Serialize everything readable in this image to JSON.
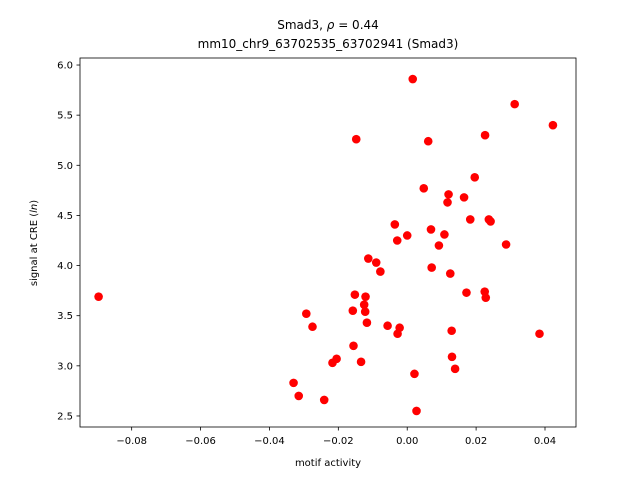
{
  "chart_data": {
    "type": "scatter",
    "title_line1_prefix": "Smad3, ",
    "title_line1_rho": "ρ",
    "title_line1_value": " = 0.44",
    "title_line2": "mm10_chr9_63702535_63702941 (Smad3)",
    "xlabel": "motif activity",
    "ylabel_prefix": "signal at CRE (",
    "ylabel_ln": "ln",
    "ylabel_suffix": ")",
    "xlim": [
      -0.095,
      0.049
    ],
    "ylim": [
      2.39,
      6.07
    ],
    "xticks": [
      -0.08,
      -0.06,
      -0.04,
      -0.02,
      0.0,
      0.02,
      0.04
    ],
    "xtick_labels": [
      "−0.08",
      "−0.06",
      "−0.04",
      "−0.02",
      "0.00",
      "0.02",
      "0.04"
    ],
    "yticks": [
      2.5,
      3.0,
      3.5,
      4.0,
      4.5,
      5.0,
      5.5,
      6.0
    ],
    "ytick_labels": [
      "2.5",
      "3.0",
      "3.5",
      "4.0",
      "4.5",
      "5.0",
      "5.5",
      "6.0"
    ],
    "grid": false,
    "marker_color": "#ff0000",
    "points": [
      [
        -0.0896,
        3.69
      ],
      [
        -0.033,
        2.83
      ],
      [
        -0.0315,
        2.7
      ],
      [
        -0.0293,
        3.52
      ],
      [
        -0.0275,
        3.39
      ],
      [
        -0.0241,
        2.66
      ],
      [
        -0.0217,
        3.03
      ],
      [
        -0.0205,
        3.07
      ],
      [
        -0.0158,
        3.55
      ],
      [
        -0.0156,
        3.2
      ],
      [
        -0.0152,
        3.71
      ],
      [
        -0.0148,
        5.26
      ],
      [
        -0.0134,
        3.04
      ],
      [
        -0.0125,
        3.61
      ],
      [
        -0.0122,
        3.54
      ],
      [
        -0.0121,
        3.69
      ],
      [
        -0.0117,
        3.43
      ],
      [
        -0.0113,
        4.07
      ],
      [
        -0.009,
        4.03
      ],
      [
        -0.0078,
        3.94
      ],
      [
        -0.0057,
        3.4
      ],
      [
        -0.0036,
        4.41
      ],
      [
        -0.0029,
        4.25
      ],
      [
        -0.0028,
        3.32
      ],
      [
        -0.0022,
        3.38
      ],
      [
        0.0,
        4.3
      ],
      [
        0.0016,
        5.86
      ],
      [
        0.0021,
        2.92
      ],
      [
        0.0027,
        2.55
      ],
      [
        0.0048,
        4.77
      ],
      [
        0.0061,
        5.24
      ],
      [
        0.0069,
        4.36
      ],
      [
        0.0071,
        3.98
      ],
      [
        0.0092,
        4.2
      ],
      [
        0.0108,
        4.31
      ],
      [
        0.0117,
        4.63
      ],
      [
        0.012,
        4.71
      ],
      [
        0.0125,
        3.92
      ],
      [
        0.0129,
        3.35
      ],
      [
        0.013,
        3.09
      ],
      [
        0.0139,
        2.97
      ],
      [
        0.0165,
        4.68
      ],
      [
        0.0172,
        3.73
      ],
      [
        0.0183,
        4.46
      ],
      [
        0.0196,
        4.88
      ],
      [
        0.0225,
        3.74
      ],
      [
        0.0228,
        3.68
      ],
      [
        0.0226,
        5.3
      ],
      [
        0.0237,
        4.46
      ],
      [
        0.0242,
        4.44
      ],
      [
        0.0287,
        4.21
      ],
      [
        0.0312,
        5.61
      ],
      [
        0.0384,
        3.32
      ],
      [
        0.0423,
        5.4
      ]
    ]
  }
}
